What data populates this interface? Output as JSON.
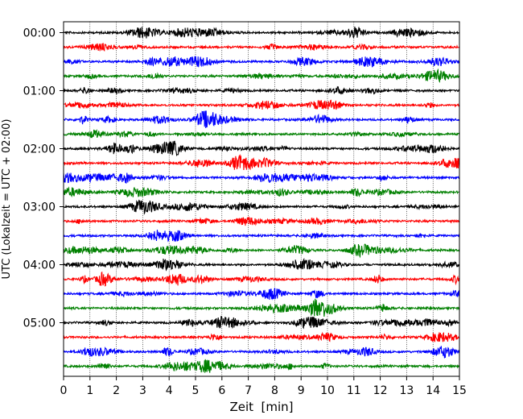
{
  "chart_data": {
    "type": "line",
    "title": "",
    "xlabel": "Zeit  [min]",
    "ylabel": "UTC (Lokalzeit = UTC + 02:00)",
    "xlim": [
      0,
      15
    ],
    "x_ticks": [
      "0",
      "1",
      "2",
      "3",
      "4",
      "5",
      "6",
      "7",
      "8",
      "9",
      "10",
      "11",
      "12",
      "13",
      "14",
      "15"
    ],
    "y_ticks": [
      "00:00",
      "01:00",
      "02:00",
      "03:00",
      "04:00",
      "05:00"
    ],
    "traces_per_hour": 4,
    "trace_count": 24,
    "trace_minutes": 15,
    "trace_colors": [
      "#000000",
      "#ff0000",
      "#0000ff",
      "#008000"
    ],
    "grid_x": true,
    "grid_style": "dotted",
    "legend": "none"
  }
}
